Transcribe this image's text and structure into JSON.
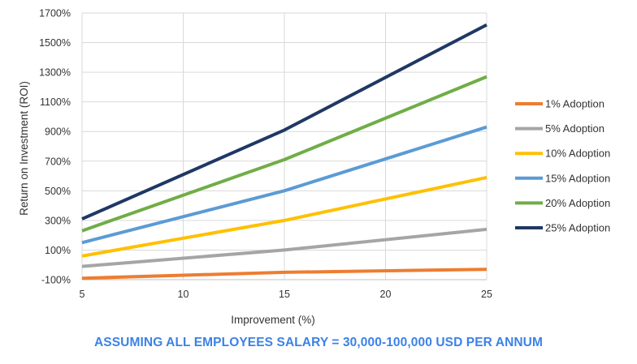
{
  "caption": "ASSUMING ALL EMPLOYEES SALARY = 30,000-100,000 USD PER ANNUM",
  "chart_data": {
    "type": "line",
    "title": "",
    "xlabel": "Improvement (%)",
    "ylabel": "Return on Investment (ROI)",
    "xlim": [
      5,
      25
    ],
    "ylim": [
      -100,
      1700
    ],
    "xticks": [
      5,
      10,
      15,
      20,
      25
    ],
    "xtick_labels": [
      "5",
      "10",
      "15",
      "20",
      "25"
    ],
    "yticks": [
      -100,
      100,
      300,
      500,
      700,
      900,
      1100,
      1300,
      1500,
      1700
    ],
    "ytick_labels": [
      "-100%",
      "100%",
      "300%",
      "500%",
      "700%",
      "900%",
      "1100%",
      "1300%",
      "1500%",
      "1700%"
    ],
    "grid": true,
    "legend_position": "right",
    "x": [
      5,
      15,
      25
    ],
    "series": [
      {
        "name": "1% Adoption",
        "color": "#ed7d31",
        "values": [
          -90,
          -50,
          -30
        ]
      },
      {
        "name": "5% Adoption",
        "color": "#a5a5a5",
        "values": [
          -10,
          100,
          240
        ]
      },
      {
        "name": "10% Adoption",
        "color": "#ffc000",
        "values": [
          60,
          300,
          590
        ]
      },
      {
        "name": "15% Adoption",
        "color": "#5b9bd5",
        "values": [
          150,
          500,
          930
        ]
      },
      {
        "name": "20% Adoption",
        "color": "#70ad47",
        "values": [
          230,
          710,
          1270
        ]
      },
      {
        "name": "25% Adoption",
        "color": "#1f3864",
        "values": [
          310,
          910,
          1620
        ]
      }
    ]
  }
}
